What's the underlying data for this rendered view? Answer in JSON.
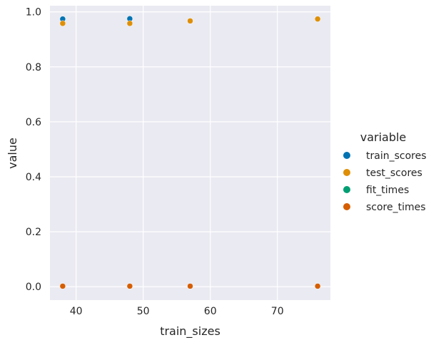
{
  "colors": {
    "plot_background": "#eaeaf2",
    "grid": "#ffffff",
    "text": "#262626"
  },
  "chart_data": {
    "type": "scatter",
    "xlabel": "train_sizes",
    "ylabel": "value",
    "xlim": [
      36.1,
      77.9
    ],
    "ylim": [
      -0.0487,
      1.0224
    ],
    "xticks": [
      40,
      50,
      60,
      70
    ],
    "yticks": [
      0.0,
      0.2,
      0.4,
      0.6,
      0.8,
      1.0
    ],
    "xtick_labels": [
      "40",
      "50",
      "60",
      "70"
    ],
    "ytick_labels": [
      "0.0",
      "0.2",
      "0.4",
      "0.6",
      "0.8",
      "1.0"
    ],
    "grid": true,
    "legend": {
      "title": "variable",
      "placement": "right"
    },
    "series": [
      {
        "name": "train_scores",
        "color": "#0173b2",
        "x": [
          38,
          48,
          57,
          76
        ],
        "y": [
          0.974,
          0.975,
          0.967,
          0.974
        ]
      },
      {
        "name": "test_scores",
        "color": "#de8f05",
        "x": [
          38,
          48,
          57,
          76
        ],
        "y": [
          0.958,
          0.958,
          0.967,
          0.974
        ]
      },
      {
        "name": "fit_times",
        "color": "#029e73",
        "x": [
          38,
          48,
          57,
          76
        ],
        "y": [
          0.002,
          0.002,
          0.002,
          0.002
        ]
      },
      {
        "name": "score_times",
        "color": "#d55e00",
        "x": [
          38,
          48,
          57,
          76
        ],
        "y": [
          0.002,
          0.002,
          0.002,
          0.002
        ]
      }
    ]
  }
}
